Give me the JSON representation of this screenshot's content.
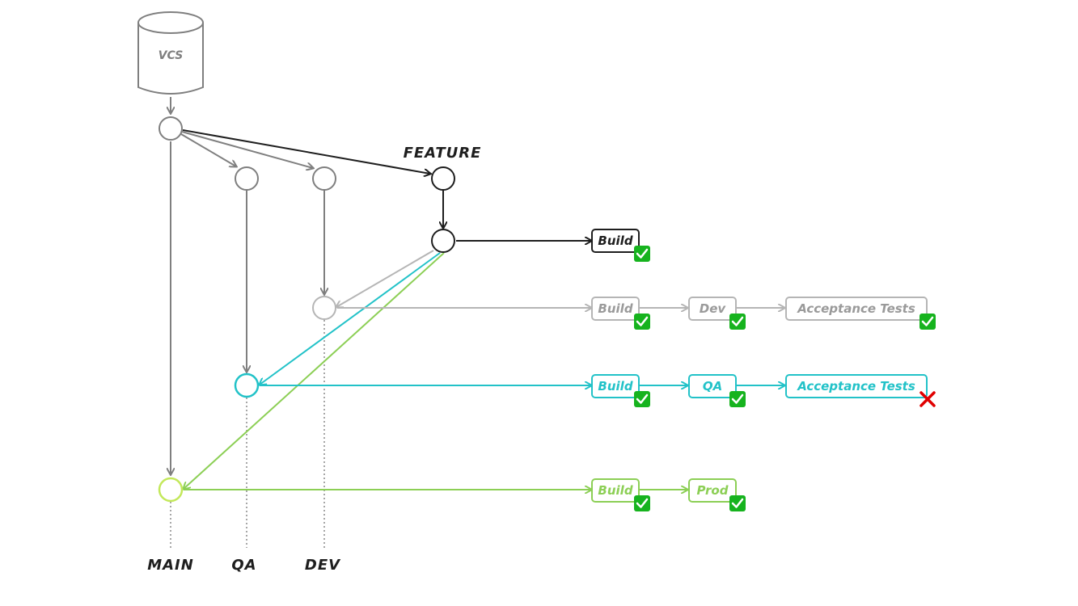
{
  "colors": {
    "feature": "#1e1e1e",
    "gray": "#7f7f7f",
    "light_gray": "#b5b5b5",
    "qa": "#22c2c8",
    "main": "#8ccf55",
    "main_node": "#c3e85a",
    "check_bg": "#16b31e",
    "fail": "#e00000",
    "dotted": "#8a8a8a"
  },
  "vcs": {
    "label": "VCS"
  },
  "branches": {
    "feature": "FEATURE",
    "main": "MAIN",
    "qa": "QA",
    "dev": "DEV"
  },
  "pipelines": {
    "feature": [
      {
        "label": "Build",
        "status": "pass"
      }
    ],
    "dev": [
      {
        "label": "Build",
        "status": "pass"
      },
      {
        "label": "Dev",
        "status": "pass"
      },
      {
        "label": "Acceptance Tests",
        "status": "pass"
      }
    ],
    "qa": [
      {
        "label": "Build",
        "status": "pass"
      },
      {
        "label": "QA",
        "status": "pass"
      },
      {
        "label": "Acceptance Tests",
        "status": "fail"
      }
    ],
    "main": [
      {
        "label": "Build",
        "status": "pass"
      },
      {
        "label": "Prod",
        "status": "pass"
      }
    ]
  }
}
